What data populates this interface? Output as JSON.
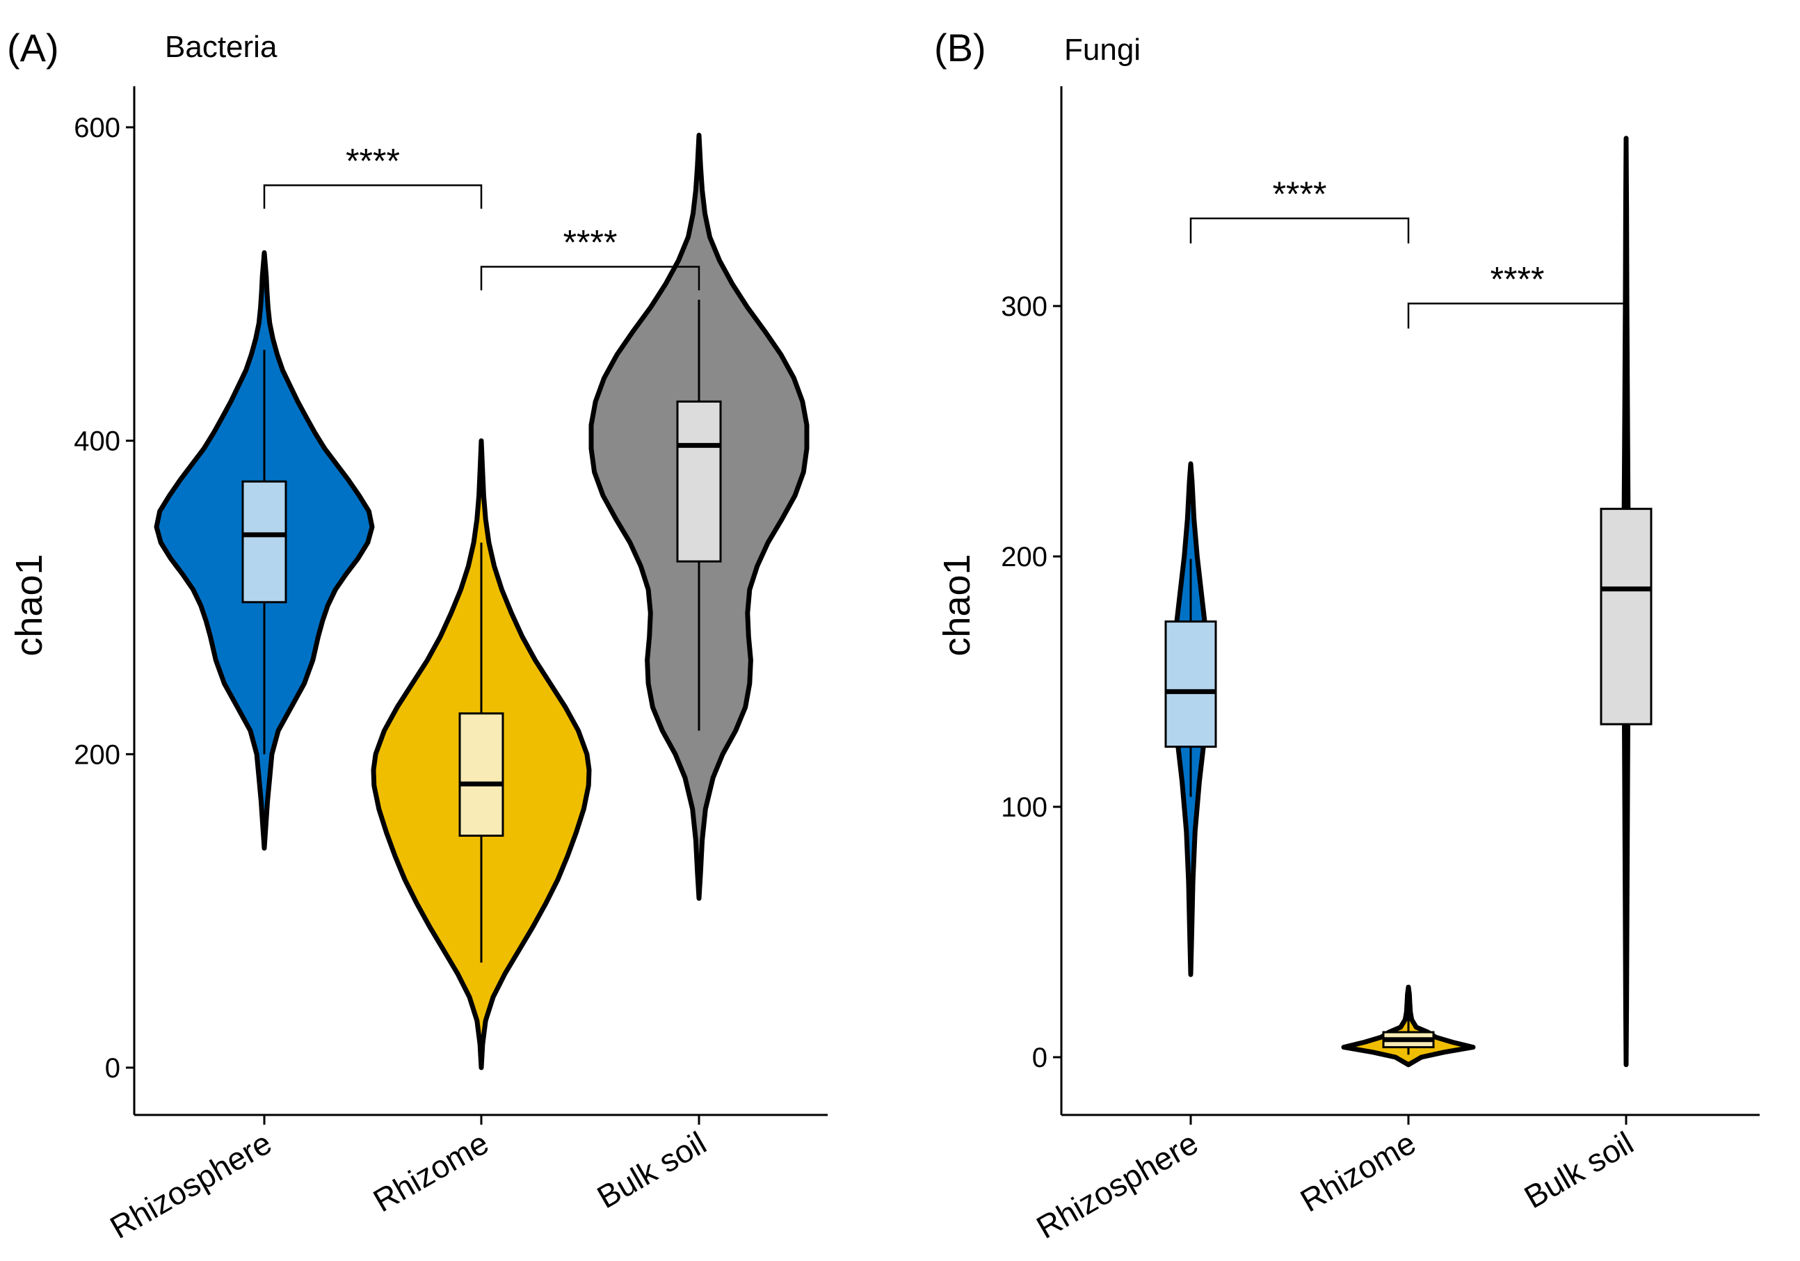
{
  "chart_data": [
    {
      "type": "violin",
      "panel_label": "(A)",
      "title": "Bacteria",
      "ylabel": "chao1",
      "ylim": [
        -30,
        625
      ],
      "yticks": [
        0,
        200,
        400,
        600
      ],
      "categories": [
        "Rhizosphere",
        "Rhizome",
        "Bulk soil"
      ],
      "groups": [
        {
          "name": "Rhizosphere",
          "fill": "#0072C6",
          "box_fill": "#B4D5EE",
          "min": 140,
          "max": 520,
          "whisker_low": 200,
          "whisker_high": 458,
          "q1": 297,
          "median": 340,
          "q3": 374,
          "density": [
            [
              140,
              0.0
            ],
            [
              155,
              0.015
            ],
            [
              170,
              0.03
            ],
            [
              185,
              0.05
            ],
            [
              200,
              0.07
            ],
            [
              215,
              0.13
            ],
            [
              230,
              0.25
            ],
            [
              245,
              0.37
            ],
            [
              260,
              0.45
            ],
            [
              275,
              0.5
            ],
            [
              285,
              0.54
            ],
            [
              295,
              0.59
            ],
            [
              305,
              0.66
            ],
            [
              315,
              0.76
            ],
            [
              325,
              0.87
            ],
            [
              335,
              0.96
            ],
            [
              345,
              1.0
            ],
            [
              355,
              0.97
            ],
            [
              365,
              0.88
            ],
            [
              375,
              0.78
            ],
            [
              385,
              0.67
            ],
            [
              395,
              0.56
            ],
            [
              405,
              0.47
            ],
            [
              415,
              0.39
            ],
            [
              425,
              0.31
            ],
            [
              435,
              0.24
            ],
            [
              445,
              0.17
            ],
            [
              455,
              0.12
            ],
            [
              465,
              0.08
            ],
            [
              475,
              0.05
            ],
            [
              485,
              0.035
            ],
            [
              495,
              0.025
            ],
            [
              505,
              0.018
            ],
            [
              520,
              0.0
            ]
          ]
        },
        {
          "name": "Rhizome",
          "fill": "#F0BE00",
          "box_fill": "#F8EBB5",
          "min": 0,
          "max": 400,
          "whisker_low": 67,
          "whisker_high": 335,
          "q1": 148,
          "median": 181,
          "q3": 226,
          "density": [
            [
              0,
              0.0
            ],
            [
              15,
              0.012
            ],
            [
              30,
              0.04
            ],
            [
              45,
              0.11
            ],
            [
              60,
              0.22
            ],
            [
              75,
              0.35
            ],
            [
              90,
              0.48
            ],
            [
              105,
              0.6
            ],
            [
              120,
              0.71
            ],
            [
              135,
              0.8
            ],
            [
              150,
              0.88
            ],
            [
              165,
              0.95
            ],
            [
              180,
              0.995
            ],
            [
              190,
              1.0
            ],
            [
              200,
              0.98
            ],
            [
              215,
              0.9
            ],
            [
              230,
              0.78
            ],
            [
              245,
              0.64
            ],
            [
              260,
              0.5
            ],
            [
              275,
              0.38
            ],
            [
              290,
              0.28
            ],
            [
              305,
              0.19
            ],
            [
              320,
              0.12
            ],
            [
              335,
              0.07
            ],
            [
              350,
              0.04
            ],
            [
              365,
              0.022
            ],
            [
              380,
              0.012
            ],
            [
              400,
              0.0
            ]
          ]
        },
        {
          "name": "Bulk soil",
          "fill": "#8A8A8A",
          "box_fill": "#DCDCDC",
          "min": 108,
          "max": 595,
          "whisker_low": 215,
          "whisker_high": 490,
          "q1": 323,
          "median": 397,
          "q3": 425,
          "density": [
            [
              108,
              0.0
            ],
            [
              125,
              0.015
            ],
            [
              145,
              0.03
            ],
            [
              165,
              0.06
            ],
            [
              185,
              0.13
            ],
            [
              200,
              0.22
            ],
            [
              215,
              0.34
            ],
            [
              230,
              0.43
            ],
            [
              245,
              0.47
            ],
            [
              260,
              0.48
            ],
            [
              275,
              0.46
            ],
            [
              290,
              0.45
            ],
            [
              305,
              0.47
            ],
            [
              320,
              0.54
            ],
            [
              335,
              0.64
            ],
            [
              350,
              0.77
            ],
            [
              365,
              0.89
            ],
            [
              380,
              0.97
            ],
            [
              395,
              1.0
            ],
            [
              410,
              1.0
            ],
            [
              425,
              0.96
            ],
            [
              440,
              0.88
            ],
            [
              455,
              0.76
            ],
            [
              470,
              0.61
            ],
            [
              485,
              0.45
            ],
            [
              500,
              0.31
            ],
            [
              515,
              0.19
            ],
            [
              530,
              0.1
            ],
            [
              545,
              0.055
            ],
            [
              560,
              0.03
            ],
            [
              575,
              0.015
            ],
            [
              595,
              0.0
            ]
          ]
        }
      ],
      "comparisons": [
        {
          "from": "Rhizosphere",
          "to": "Rhizome",
          "label": "****",
          "y": 563,
          "tip": 548
        },
        {
          "from": "Rhizome",
          "to": "Bulk soil",
          "label": "****",
          "y": 511,
          "tip": 496
        }
      ]
    },
    {
      "type": "violin",
      "panel_label": "(B)",
      "title": "Fungi",
      "ylabel": "chao1",
      "ylim": [
        -23,
        387
      ],
      "yticks": [
        0,
        100,
        200,
        300
      ],
      "categories": [
        "Rhizosphere",
        "Rhizome",
        "Bulk soil"
      ],
      "groups": [
        {
          "name": "Rhizosphere",
          "fill": "#0072C6",
          "box_fill": "#B4D5EE",
          "min": 33,
          "max": 237,
          "whisker_low": 104,
          "whisker_high": 199,
          "q1": 124,
          "median": 146,
          "q3": 174,
          "density": [
            [
              33,
              0.0
            ],
            [
              50,
              0.01
            ],
            [
              70,
              0.02
            ],
            [
              90,
              0.04
            ],
            [
              110,
              0.08
            ],
            [
              125,
              0.12
            ],
            [
              140,
              0.16
            ],
            [
              155,
              0.165
            ],
            [
              170,
              0.14
            ],
            [
              185,
              0.1
            ],
            [
              200,
              0.06
            ],
            [
              215,
              0.03
            ],
            [
              230,
              0.012
            ],
            [
              237,
              0.0
            ]
          ]
        },
        {
          "name": "Rhizome",
          "fill": "#F0BE00",
          "box_fill": "#F8EBB5",
          "min": -3,
          "max": 28,
          "whisker_low": 1,
          "whisker_high": 19,
          "q1": 4,
          "median": 7,
          "q3": 10,
          "density": [
            [
              -3,
              0.0
            ],
            [
              0,
              0.2
            ],
            [
              2,
              0.55
            ],
            [
              4,
              1.0
            ],
            [
              6,
              0.68
            ],
            [
              8,
              0.42
            ],
            [
              10,
              0.3
            ],
            [
              12,
              0.12
            ],
            [
              15,
              0.05
            ],
            [
              18,
              0.03
            ],
            [
              22,
              0.02
            ],
            [
              25,
              0.015
            ],
            [
              28,
              0.0
            ]
          ]
        },
        {
          "name": "Bulk soil",
          "fill": "#8A8A8A",
          "box_fill": "#DCDCDC",
          "min": -3,
          "max": 367,
          "whisker_low": 20,
          "whisker_high": 300,
          "q1": 133,
          "median": 187,
          "q3": 219,
          "density": [
            [
              -3,
              0.0
            ],
            [
              20,
              0.004
            ],
            [
              60,
              0.008
            ],
            [
              100,
              0.012
            ],
            [
              140,
              0.017
            ],
            [
              180,
              0.021
            ],
            [
              220,
              0.018
            ],
            [
              260,
              0.012
            ],
            [
              300,
              0.007
            ],
            [
              340,
              0.004
            ],
            [
              367,
              0.0
            ]
          ]
        }
      ],
      "comparisons": [
        {
          "from": "Rhizosphere",
          "to": "Rhizome",
          "label": "****",
          "y": 335,
          "tip": 325
        },
        {
          "from": "Rhizome",
          "to": "Bulk soil",
          "label": "****",
          "y": 301,
          "tip": 291
        }
      ]
    }
  ]
}
